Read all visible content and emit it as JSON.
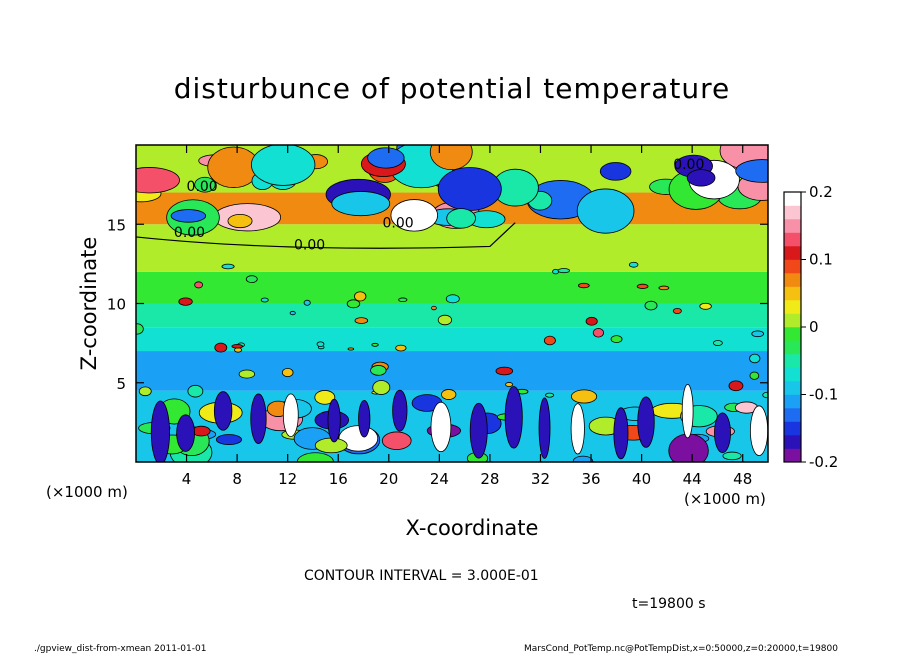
{
  "chart_data": {
    "type": "heatmap",
    "title": "disturbunce of potential temperature",
    "xlabel": "X-coordinate",
    "ylabel": "Z-coordinate",
    "x_unit": "(×1000 m)",
    "y_unit": "(×1000 m)",
    "xlim": [
      0,
      50
    ],
    "ylim": [
      0,
      20
    ],
    "x_ticks": [
      4,
      8,
      12,
      16,
      20,
      24,
      28,
      32,
      36,
      40,
      44,
      48
    ],
    "y_ticks": [
      5,
      10,
      15
    ],
    "colorbar": {
      "range": [
        -0.2,
        0.2
      ],
      "tick_labels": [
        "0.2",
        "0.1",
        "0",
        "-0.1",
        "-0.2"
      ],
      "tick_values": [
        0.2,
        0.1,
        0,
        -0.1,
        -0.2
      ],
      "colors": [
        "#7a0fa0",
        "#2b12b8",
        "#1835e0",
        "#1e6cf2",
        "#1aa0f5",
        "#18c6ea",
        "#12e0d2",
        "#1ae8a8",
        "#28e858",
        "#32e832",
        "#b0ec2a",
        "#f0ea18",
        "#f6c010",
        "#f08a10",
        "#f04818",
        "#d8181a",
        "#f4506a",
        "#f890a8",
        "#fbc6d2",
        "#ffffff"
      ]
    },
    "contour_labels": [
      "0.00",
      "0.00",
      "0.00",
      "0.00",
      "0.00"
    ],
    "contour_interval_text": "CONTOUR INTERVAL = 3.000E-01",
    "time_text": "t=19800 s",
    "layers_z": [
      {
        "z": [
          0,
          4.5
        ],
        "value": -0.09
      },
      {
        "z": [
          4.5,
          7
        ],
        "value": -0.11
      },
      {
        "z": [
          7,
          8.5
        ],
        "value": -0.08
      },
      {
        "z": [
          8.5,
          10
        ],
        "value": -0.045
      },
      {
        "z": [
          10,
          12
        ],
        "value": -0.02
      },
      {
        "z": [
          12,
          15
        ],
        "value": 0.0
      },
      {
        "z": [
          15,
          17
        ],
        "value": 0.07
      },
      {
        "z": [
          17,
          20
        ],
        "value": 0.02
      }
    ]
  },
  "footer": {
    "left_text": "./gpview_dist-from-xmean  2011-01-01",
    "right_text": "MarsCond_PotTemp.nc@PotTempDist,x=0:50000,z=0:20000,t=19800"
  },
  "colors": {
    "contour": "#000000",
    "background": "#ffffff"
  }
}
